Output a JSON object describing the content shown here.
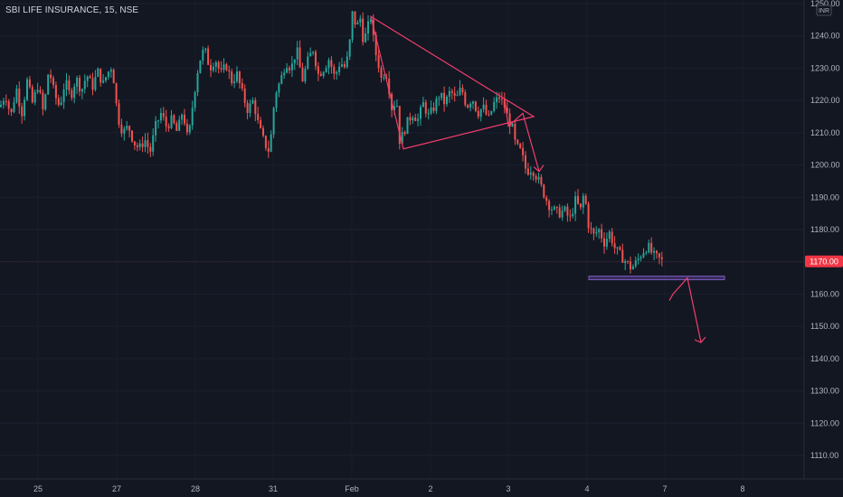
{
  "symbol_title": "SBI LIFE INSURANCE, 15, NSE",
  "currency": "INR",
  "current_price_label": "1170.00",
  "colors": {
    "background": "#131722",
    "up": "#26a69a",
    "down": "#ef5350",
    "drawing": "#f23d6d",
    "support": "#7e57c2",
    "axis_text": "#b2b5be",
    "price_tag": "#f23645"
  },
  "chart_data": {
    "type": "candlestick",
    "title": "SBI LIFE INSURANCE, 15, NSE",
    "xlabel": "",
    "ylabel": "",
    "ylim": [
      1100,
      1250
    ],
    "y_ticks": [
      "1110.00",
      "1120.00",
      "1130.00",
      "1140.00",
      "1150.00",
      "1160.00",
      "1170.00",
      "1180.00",
      "1190.00",
      "1200.00",
      "1210.00",
      "1220.00",
      "1230.00",
      "1240.00",
      "1250.00"
    ],
    "x_ticks": [
      "25",
      "27",
      "28",
      "31",
      "Feb",
      "2",
      "3",
      "4",
      "7",
      "8"
    ],
    "current_price": 1170,
    "support_level": 1165,
    "price_path": [
      [
        0,
        1218
      ],
      [
        6,
        1222
      ],
      [
        12,
        1215
      ],
      [
        18,
        1224
      ],
      [
        24,
        1216
      ],
      [
        30,
        1226
      ],
      [
        36,
        1219
      ],
      [
        42,
        1225
      ],
      [
        48,
        1216
      ],
      [
        54,
        1230
      ],
      [
        60,
        1222
      ],
      [
        66,
        1218
      ],
      [
        72,
        1226
      ],
      [
        78,
        1221
      ],
      [
        84,
        1227
      ],
      [
        90,
        1223
      ],
      [
        96,
        1228
      ],
      [
        102,
        1224
      ],
      [
        108,
        1229
      ],
      [
        114,
        1225
      ],
      [
        118,
        1228
      ],
      [
        124,
        1231
      ],
      [
        130,
        1215
      ],
      [
        136,
        1210
      ],
      [
        142,
        1212
      ],
      [
        148,
        1207
      ],
      [
        154,
        1205
      ],
      [
        160,
        1208
      ],
      [
        166,
        1204
      ],
      [
        172,
        1212
      ],
      [
        178,
        1216
      ],
      [
        184,
        1212
      ],
      [
        190,
        1214
      ],
      [
        196,
        1210
      ],
      [
        202,
        1217
      ],
      [
        208,
        1207
      ],
      [
        214,
        1221
      ],
      [
        220,
        1232
      ],
      [
        226,
        1236
      ],
      [
        232,
        1230
      ],
      [
        238,
        1233
      ],
      [
        244,
        1228
      ],
      [
        250,
        1231
      ],
      [
        256,
        1226
      ],
      [
        262,
        1228
      ],
      [
        268,
        1222
      ],
      [
        274,
        1217
      ],
      [
        280,
        1220
      ],
      [
        286,
        1212
      ],
      [
        292,
        1207
      ],
      [
        298,
        1204
      ],
      [
        304,
        1222
      ],
      [
        310,
        1226
      ],
      [
        316,
        1232
      ],
      [
        322,
        1230
      ],
      [
        328,
        1236
      ],
      [
        334,
        1226
      ],
      [
        340,
        1232
      ],
      [
        346,
        1236
      ],
      [
        352,
        1228
      ],
      [
        358,
        1230
      ],
      [
        364,
        1233
      ],
      [
        370,
        1227
      ],
      [
        376,
        1232
      ],
      [
        382,
        1230
      ],
      [
        386,
        1236
      ],
      [
        390,
        1248
      ],
      [
        394,
        1242
      ],
      [
        398,
        1246
      ],
      [
        402,
        1238
      ],
      [
        406,
        1242
      ],
      [
        410,
        1246
      ],
      [
        414,
        1236
      ],
      [
        418,
        1232
      ],
      [
        422,
        1226
      ],
      [
        426,
        1230
      ],
      [
        430,
        1224
      ],
      [
        434,
        1216
      ],
      [
        438,
        1222
      ],
      [
        442,
        1207
      ],
      [
        446,
        1210
      ],
      [
        450,
        1213
      ],
      [
        456,
        1216
      ],
      [
        462,
        1214
      ],
      [
        468,
        1219
      ],
      [
        474,
        1215
      ],
      [
        480,
        1218
      ],
      [
        486,
        1222
      ],
      [
        492,
        1219
      ],
      [
        498,
        1223
      ],
      [
        504,
        1220
      ],
      [
        510,
        1224
      ],
      [
        516,
        1218
      ],
      [
        522,
        1221
      ],
      [
        528,
        1216
      ],
      [
        534,
        1218
      ],
      [
        540,
        1214
      ],
      [
        546,
        1219
      ],
      [
        552,
        1221
      ],
      [
        558,
        1218
      ],
      [
        562,
        1214
      ],
      [
        566,
        1212
      ],
      [
        570,
        1206
      ],
      [
        576,
        1204
      ],
      [
        582,
        1198
      ],
      [
        588,
        1199
      ],
      [
        594,
        1196
      ],
      [
        600,
        1192
      ],
      [
        606,
        1188
      ],
      [
        612,
        1186
      ],
      [
        618,
        1185
      ],
      [
        624,
        1186
      ],
      [
        630,
        1183
      ],
      [
        636,
        1189
      ],
      [
        642,
        1186
      ],
      [
        646,
        1192
      ],
      [
        650,
        1182
      ],
      [
        656,
        1178
      ],
      [
        662,
        1180
      ],
      [
        668,
        1176
      ],
      [
        674,
        1179
      ],
      [
        680,
        1174
      ],
      [
        686,
        1172
      ],
      [
        692,
        1170
      ],
      [
        698,
        1168
      ],
      [
        704,
        1170
      ],
      [
        710,
        1173
      ],
      [
        716,
        1175
      ],
      [
        722,
        1172
      ],
      [
        728,
        1171
      ],
      [
        733,
        1170
      ]
    ],
    "annotations": {
      "triangle": [
        [
          410,
          1246
        ],
        [
          590,
          1215
        ],
        [
          446,
          1205
        ]
      ],
      "breakdown_arrow": [
        [
          558,
          1220
        ],
        [
          562,
          1212
        ],
        [
          578,
          1216
        ],
        [
          596,
          1198
        ]
      ],
      "projection_arrow": [
        [
          740,
          1158
        ],
        [
          744,
          1160
        ],
        [
          760,
          1165
        ],
        [
          775,
          1145
        ]
      ]
    }
  }
}
